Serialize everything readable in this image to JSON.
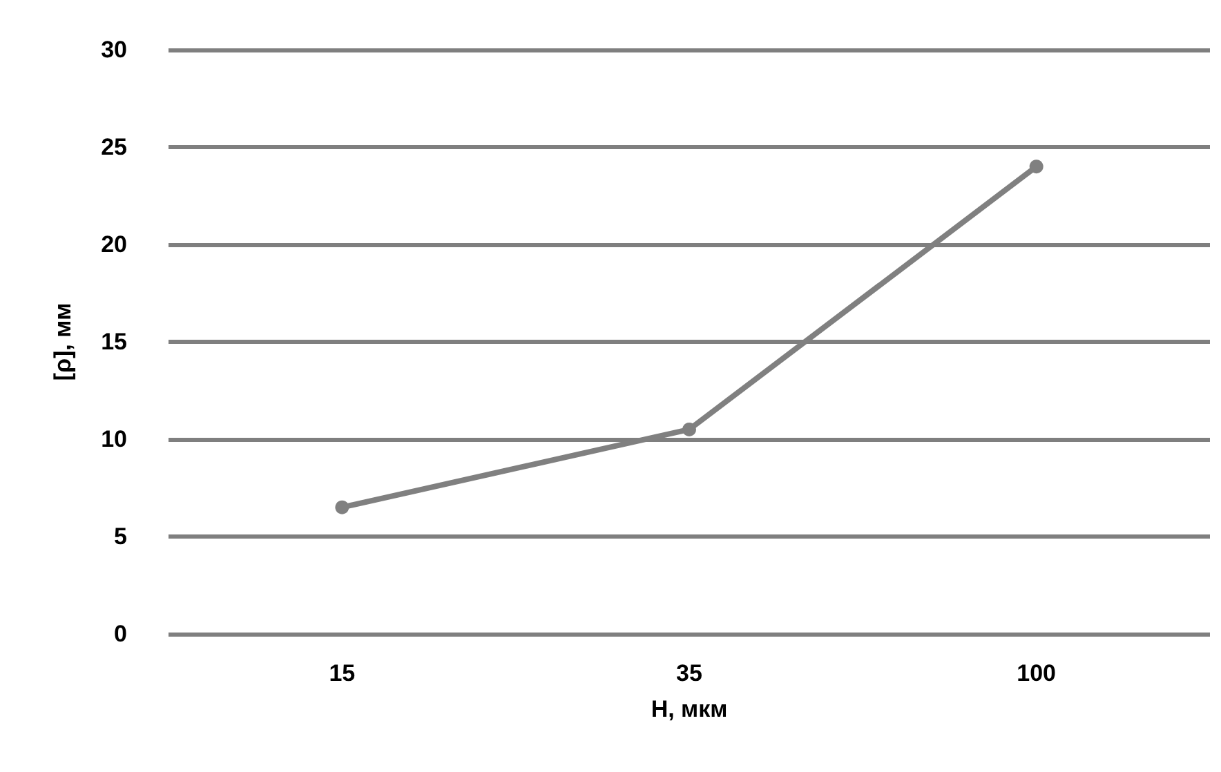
{
  "chart_data": {
    "type": "line",
    "xlabel": "H, мкм",
    "ylabel": "[ρ], мм",
    "categories": [
      "15",
      "35",
      "100"
    ],
    "series": [
      {
        "color": "#808080",
        "values": [
          6.5,
          10.5,
          24
        ]
      }
    ],
    "ylim": [
      0,
      30
    ],
    "yticks": [
      0,
      5,
      10,
      15,
      20,
      25,
      30
    ],
    "grid": "y",
    "marker": "circle",
    "line_style": "solid"
  }
}
